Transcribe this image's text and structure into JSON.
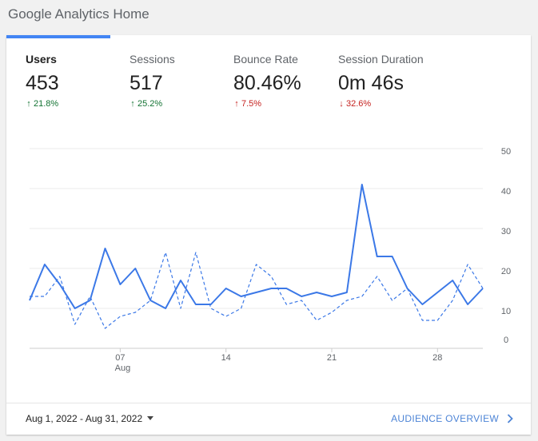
{
  "page": {
    "title": "Google Analytics Home"
  },
  "metrics": [
    {
      "label": "Users",
      "value": "453",
      "change": "21.8%",
      "direction": "up",
      "color": "#137333"
    },
    {
      "label": "Sessions",
      "value": "517",
      "change": "25.2%",
      "direction": "up",
      "color": "#137333"
    },
    {
      "label": "Bounce Rate",
      "value": "80.46%",
      "change": "7.5%",
      "direction": "up",
      "color": "#c5221f"
    },
    {
      "label": "Session Duration",
      "value": "0m 46s",
      "change": "32.6%",
      "direction": "down",
      "color": "#c5221f"
    }
  ],
  "footer": {
    "date_range": "Aug 1, 2022 - Aug 31, 2022",
    "audience_link": "AUDIENCE OVERVIEW"
  },
  "icons": {
    "up": "arrow-up-icon",
    "down": "arrow-down-icon",
    "dropdown": "caret-down-icon",
    "link": "chevron-right-icon"
  },
  "colors": {
    "accent": "#4285f4",
    "line": "#3b78e7",
    "positive": "#137333",
    "negative": "#c5221f"
  },
  "chart_data": {
    "type": "line",
    "x_ticks": [
      {
        "day": 7,
        "label": "07",
        "sublabel": "Aug"
      },
      {
        "day": 14,
        "label": "14",
        "sublabel": ""
      },
      {
        "day": 21,
        "label": "21",
        "sublabel": ""
      },
      {
        "day": 28,
        "label": "28",
        "sublabel": ""
      }
    ],
    "y_ticks": [
      0,
      10,
      20,
      30,
      40,
      50
    ],
    "ylim": [
      0,
      50
    ],
    "xlim": [
      1,
      31
    ],
    "grid": true,
    "series": [
      {
        "style": "solid",
        "x": [
          1,
          2,
          3,
          4,
          5,
          6,
          7,
          8,
          9,
          10,
          11,
          12,
          13,
          14,
          15,
          16,
          17,
          18,
          19,
          20,
          21,
          22,
          23,
          24,
          25,
          26,
          27,
          28,
          29,
          30,
          31
        ],
        "y": [
          12,
          21,
          16,
          10,
          12,
          25,
          16,
          20,
          12,
          10,
          17,
          11,
          11,
          15,
          13,
          14,
          15,
          15,
          13,
          14,
          13,
          14,
          41,
          23,
          23,
          15,
          11,
          14,
          17,
          11,
          15
        ]
      },
      {
        "style": "dashed",
        "x": [
          1,
          2,
          3,
          4,
          5,
          6,
          7,
          8,
          9,
          10,
          11,
          12,
          13,
          14,
          15,
          16,
          17,
          18,
          19,
          20,
          21,
          22,
          23,
          24,
          25,
          26,
          27,
          28,
          29,
          30,
          31
        ],
        "y": [
          13,
          13,
          18,
          6,
          13,
          5,
          8,
          9,
          12,
          24,
          10,
          24,
          10,
          8,
          10,
          21,
          18,
          11,
          12,
          7,
          9,
          12,
          13,
          18,
          12,
          15,
          7,
          7,
          12,
          21,
          15
        ]
      }
    ]
  }
}
